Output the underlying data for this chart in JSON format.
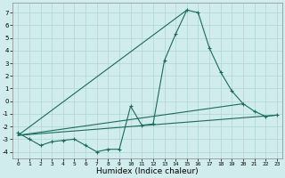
{
  "xlabel": "Humidex (Indice chaleur)",
  "background_color": "#d0ecec",
  "grid_color": "#b0d4d4",
  "line_color": "#1a6b5a",
  "xlim": [
    -0.5,
    23.5
  ],
  "ylim": [
    -4.5,
    7.8
  ],
  "yticks": [
    -4,
    -3,
    -2,
    -1,
    0,
    1,
    2,
    3,
    4,
    5,
    6,
    7
  ],
  "xticks": [
    0,
    1,
    2,
    3,
    4,
    5,
    6,
    7,
    8,
    9,
    10,
    11,
    12,
    13,
    14,
    15,
    16,
    17,
    18,
    19,
    20,
    21,
    22,
    23
  ],
  "main_x": [
    0,
    1,
    2,
    3,
    4,
    5,
    6,
    7,
    8,
    9,
    10,
    11,
    12,
    13,
    14,
    15,
    16,
    17,
    18,
    19,
    20,
    21,
    22,
    23
  ],
  "main_y": [
    -2.5,
    -3.0,
    -3.5,
    -3.2,
    -3.1,
    -3.0,
    -3.5,
    -4.0,
    -3.8,
    -3.8,
    -0.4,
    -1.9,
    -1.8,
    3.2,
    5.3,
    7.2,
    7.0,
    4.2,
    2.3,
    0.8,
    -0.2,
    -0.8,
    -1.2,
    -1.1
  ],
  "trend1_x": [
    0,
    23
  ],
  "trend1_y": [
    -2.7,
    -1.1
  ],
  "trend2_x": [
    0,
    20
  ],
  "trend2_y": [
    -2.7,
    -0.2
  ],
  "trend3_x": [
    0,
    15
  ],
  "trend3_y": [
    -2.7,
    7.2
  ]
}
